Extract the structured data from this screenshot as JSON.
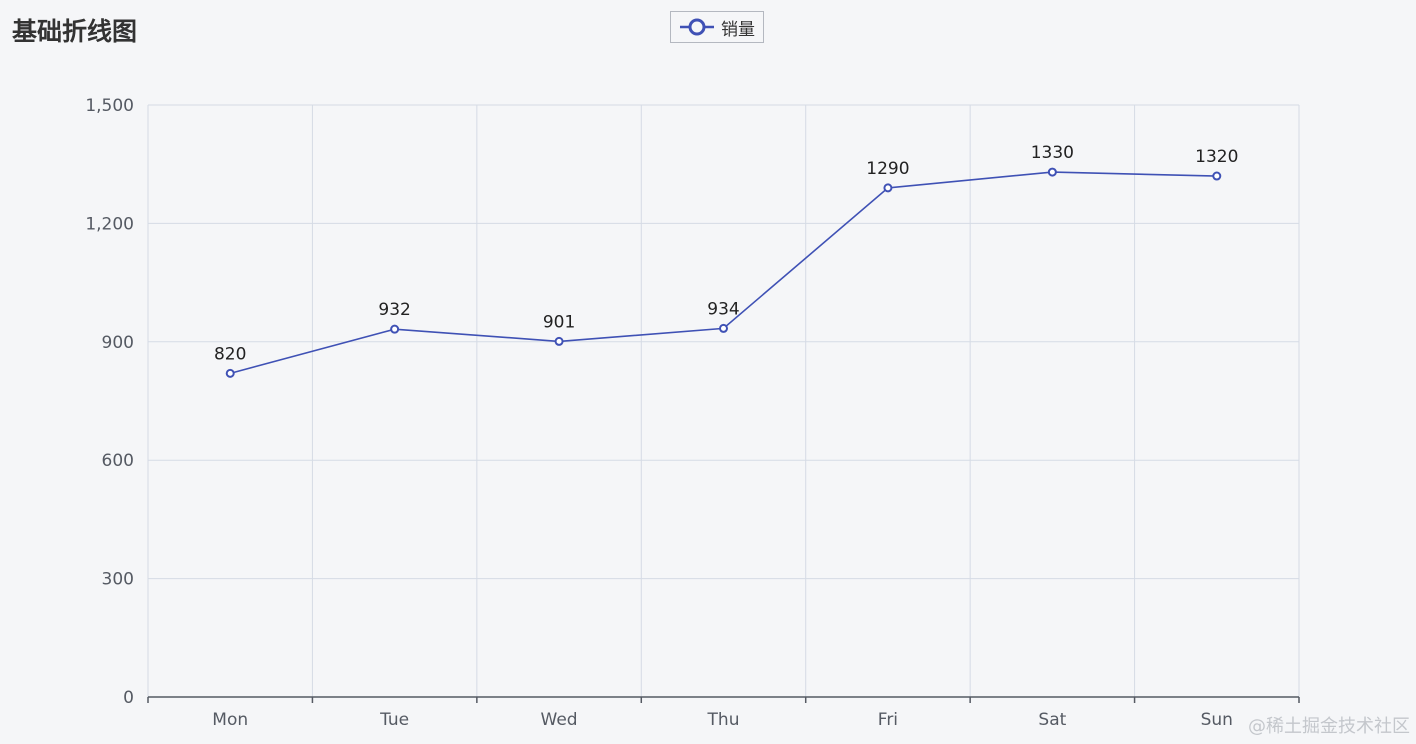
{
  "chart_data": {
    "type": "line",
    "title": "基础折线图",
    "categories": [
      "Mon",
      "Tue",
      "Wed",
      "Thu",
      "Fri",
      "Sat",
      "Sun"
    ],
    "series": [
      {
        "name": "销量",
        "values": [
          820,
          932,
          901,
          934,
          1290,
          1330,
          1320
        ],
        "color": "#3f51b5"
      }
    ],
    "yticks": [
      "0",
      "300",
      "600",
      "900",
      "1,200",
      "1,500"
    ],
    "ylim": [
      0,
      1500
    ],
    "ystep": 300,
    "grid": true,
    "legend_position": "top-center",
    "show_data_labels": true
  },
  "watermark": "@稀土掘金技术社区"
}
